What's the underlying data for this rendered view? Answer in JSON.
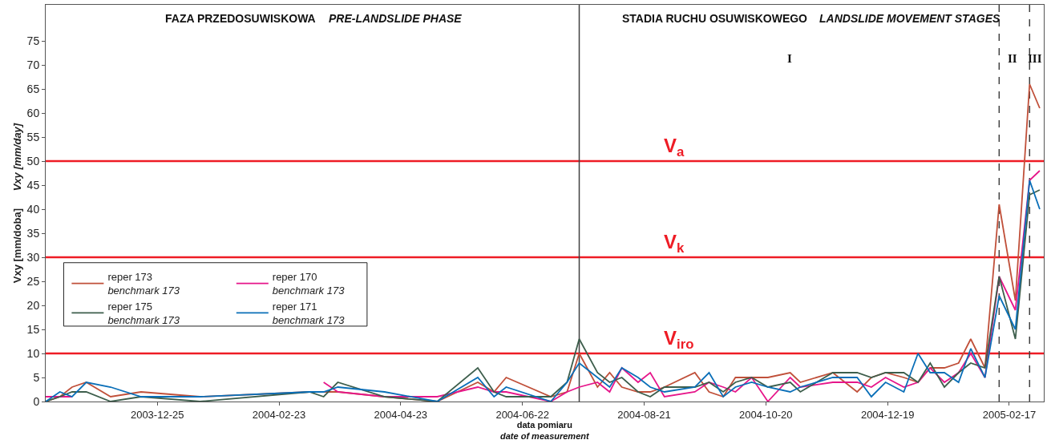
{
  "chart_data": {
    "type": "line",
    "xlabel": "data pomiaru\ndate of measurement",
    "ylabel": "Vxy [mm/doba]\nVxy [mm/day]",
    "x": [
      "2003-10-31",
      "2003-11-07",
      "2003-11-13",
      "2003-11-20",
      "2003-12-02",
      "2003-12-17",
      "2004-01-15",
      "2004-03-09",
      "2004-03-16",
      "2004-03-23",
      "2004-04-15",
      "2004-05-11",
      "2004-05-31",
      "2004-06-08",
      "2004-06-14",
      "2004-07-06",
      "2004-07-14",
      "2004-07-20",
      "2004-07-29",
      "2004-08-04",
      "2004-08-10",
      "2004-08-18",
      "2004-08-24",
      "2004-08-31",
      "2004-09-15",
      "2004-09-22",
      "2004-09-29",
      "2004-10-05",
      "2004-10-13",
      "2004-10-21",
      "2004-11-01",
      "2004-11-06",
      "2004-11-22",
      "2004-12-04",
      "2004-12-11",
      "2004-12-18",
      "2004-12-27",
      "2005-01-03",
      "2005-01-09",
      "2005-01-16",
      "2005-01-23",
      "2005-01-29",
      "2005-02-05",
      "2005-02-12",
      "2005-02-20",
      "2005-02-27",
      "2005-03-04"
    ],
    "series": [
      {
        "name": "reper 173\nbenchmark 173",
        "color": "#c0503a",
        "values": [
          0,
          1,
          3,
          4,
          1,
          2,
          1,
          2,
          2,
          2,
          1,
          0,
          4,
          2,
          5,
          1,
          2,
          10,
          3,
          6,
          3,
          2,
          2,
          3,
          6,
          2,
          1,
          5,
          5,
          5,
          6,
          4,
          6,
          2,
          5,
          6,
          5,
          4,
          7,
          7,
          8,
          13,
          7,
          41,
          21,
          66,
          61
        ]
      },
      {
        "name": "reper 170\nbenchmark 173",
        "color": "#e6168a",
        "values": [
          1,
          1,
          1,
          null,
          null,
          null,
          null,
          null,
          4,
          2,
          1,
          1,
          3,
          2,
          2,
          0,
          2,
          3,
          4,
          2,
          7,
          4,
          6,
          1,
          2,
          4,
          3,
          2,
          5,
          0,
          5,
          3,
          4,
          4,
          3,
          5,
          3,
          4,
          7,
          4,
          6,
          10,
          5,
          26,
          19,
          46,
          48
        ]
      },
      {
        "name": "reper 175\nbenchmark 173",
        "color": "#3d5e4c",
        "values": [
          0,
          1,
          2,
          2,
          0,
          1,
          0,
          2,
          1,
          4,
          1,
          0,
          7,
          2,
          1,
          1,
          4,
          13,
          6,
          4,
          5,
          2,
          1,
          3,
          3,
          4,
          2,
          4,
          5,
          3,
          4,
          2,
          6,
          6,
          5,
          6,
          6,
          4,
          8,
          3,
          6,
          8,
          7,
          26,
          13,
          43,
          44
        ]
      },
      {
        "name": "reper 171\nbenchmark 173",
        "color": "#0a6fb8",
        "values": [
          0,
          2,
          1,
          4,
          3,
          1,
          1,
          2,
          2,
          3,
          2,
          0,
          5,
          1,
          3,
          0,
          4,
          8,
          5,
          3,
          7,
          5,
          3,
          2,
          3,
          6,
          1,
          3,
          4,
          3,
          2,
          3,
          5,
          5,
          1,
          4,
          2,
          10,
          6,
          6,
          4,
          11,
          5,
          22,
          15,
          46,
          40
        ]
      }
    ],
    "xlim": [
      "2003-10-31",
      "2005-03-06"
    ],
    "xticks": [
      "2003-12-25",
      "2004-02-23",
      "2004-04-23",
      "2004-06-22",
      "2004-08-21",
      "2004-10-20",
      "2004-12-19",
      "2005-02-17"
    ],
    "ylim": [
      0,
      82.5
    ],
    "yticks": [
      0,
      5,
      10,
      15,
      20,
      25,
      30,
      35,
      40,
      45,
      50,
      55,
      60,
      65,
      70,
      75
    ],
    "grid": false,
    "legend": "left",
    "marker": "none",
    "line_style": "solid",
    "ref_lines": [
      {
        "axis": "y",
        "value": 50,
        "label": "V$_{a}$",
        "color": "#ee1c25"
      },
      {
        "axis": "y",
        "value": 30,
        "label": "V$_{k}$",
        "color": "#ee1c25"
      },
      {
        "axis": "y",
        "value": 10,
        "label": "V$_{iro}$",
        "color": "#ee1c25"
      },
      {
        "axis": "x",
        "value": "2004-07-20",
        "label": null,
        "color": "#404040",
        "line_style": "solid"
      },
      {
        "axis": "x",
        "value": "2005-02-12",
        "label": null,
        "color": "#404040",
        "line_style": "dashed"
      },
      {
        "axis": "x",
        "value": "2005-02-27",
        "label": null,
        "color": "#404040",
        "line_style": "dashed"
      }
    ],
    "annotations": [
      "FAZA PRZEDOSUWISKOWA",
      "PRE-LANDSLIDE PHASE",
      "STADIA RUCHU OSUWISKOWEGO",
      "LANDSLIDE MOVEMENT STAGES",
      "I",
      "II",
      "III"
    ]
  }
}
